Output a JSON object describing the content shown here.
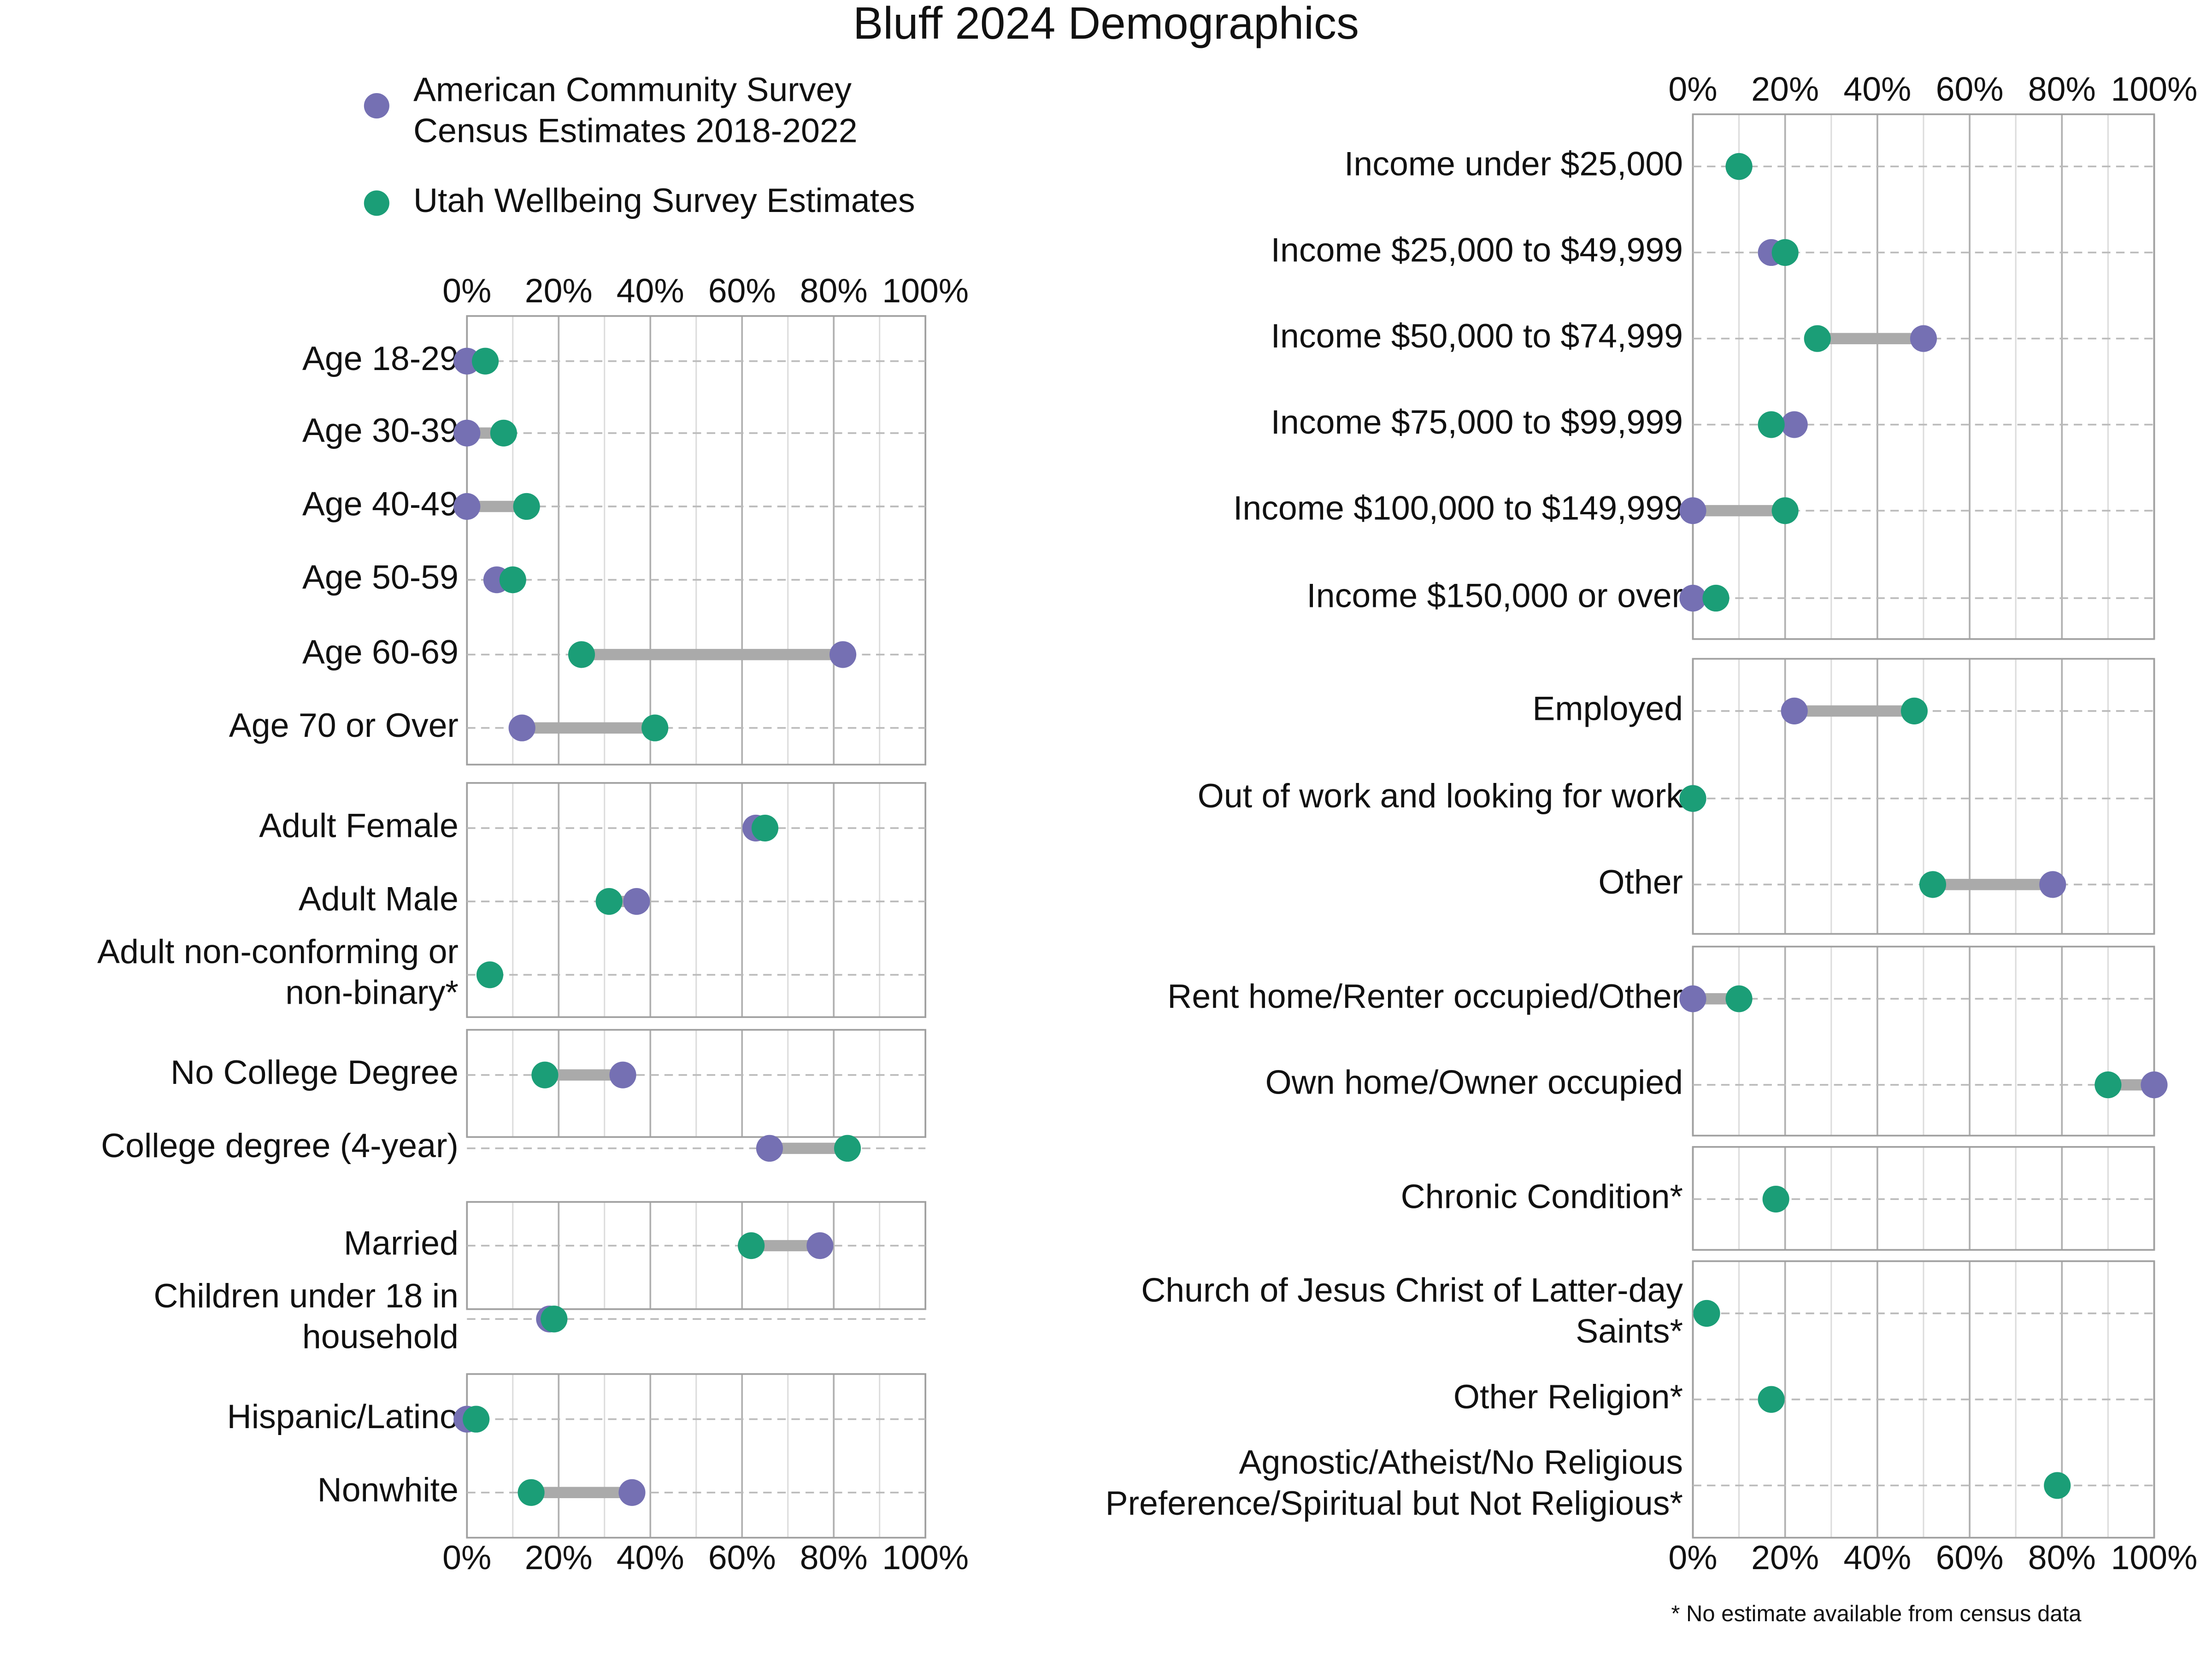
{
  "chart_data": {
    "type": "dumbbell",
    "title": "Bluff 2024 Demographics",
    "series": [
      {
        "name": "American Community Survey\nCensus Estimates 2018-2022",
        "color": "#7570b3"
      },
      {
        "name": "Utah Wellbeing Survey Estimates",
        "color": "#1b9e77"
      }
    ],
    "xlim": [
      0,
      100
    ],
    "xticks": [
      {
        "value": 0,
        "label": "0%"
      },
      {
        "value": 20,
        "label": "20%"
      },
      {
        "value": 40,
        "label": "40%"
      },
      {
        "value": 60,
        "label": "60%"
      },
      {
        "value": 80,
        "label": "80%"
      },
      {
        "value": 100,
        "label": "100%"
      }
    ],
    "minor_xticks": [
      10,
      30,
      50,
      70,
      90
    ],
    "footnote": "* No estimate available from census data",
    "panels": [
      {
        "categories": [
          "Age 18-29",
          "Age 30-39",
          "Age 40-49",
          "Age 50-59",
          "Age 60-69",
          "Age 70 or Over"
        ],
        "series": [
          {
            "values": [
              0,
              0,
              0,
              6.5,
              82,
              12
            ]
          },
          {
            "values": [
              4,
              8,
              13,
              10,
              25,
              41
            ]
          }
        ]
      },
      {
        "categories": [
          "Adult Female",
          "Adult Male",
          "Adult non-conforming or\nnon-binary*"
        ],
        "series": [
          {
            "values": [
              63,
              37,
              null
            ]
          },
          {
            "values": [
              65,
              31,
              5
            ]
          }
        ]
      },
      {
        "categories": [
          "No College Degree",
          "College degree (4-year)"
        ],
        "series": [
          {
            "values": [
              34,
              66
            ]
          },
          {
            "values": [
              17,
              83
            ]
          }
        ]
      },
      {
        "categories": [
          "Married",
          "Children under 18 in\nhousehold"
        ],
        "series": [
          {
            "values": [
              77,
              18
            ]
          },
          {
            "values": [
              62,
              19
            ]
          }
        ]
      },
      {
        "categories": [
          "Hispanic/Latino",
          "Nonwhite"
        ],
        "series": [
          {
            "values": [
              0,
              36
            ]
          },
          {
            "values": [
              2,
              14
            ]
          }
        ]
      },
      {
        "categories": [
          "Income under $25,000",
          "Income $25,000 to $49,999",
          "Income $50,000 to $74,999",
          "Income $75,000 to $99,999",
          "Income $100,000 to $149,999",
          "Income $150,000 or over"
        ],
        "series": [
          {
            "values": [
              10,
              17,
              50,
              22,
              0,
              0
            ]
          },
          {
            "values": [
              10,
              20,
              27,
              17,
              20,
              5
            ]
          }
        ]
      },
      {
        "categories": [
          "Employed",
          "Out of work and looking for work",
          "Other"
        ],
        "series": [
          {
            "values": [
              22,
              0,
              78
            ]
          },
          {
            "values": [
              48,
              0,
              52
            ]
          }
        ]
      },
      {
        "categories": [
          "Rent home/Renter occupied/Other",
          "Own home/Owner occupied"
        ],
        "series": [
          {
            "values": [
              0,
              100
            ]
          },
          {
            "values": [
              10,
              90
            ]
          }
        ]
      },
      {
        "categories": [
          "Chronic Condition*"
        ],
        "series": [
          {
            "values": [
              null
            ]
          },
          {
            "values": [
              18
            ]
          }
        ]
      },
      {
        "categories": [
          "Church of Jesus Christ of Latter-day\nSaints*",
          "Other Religion*",
          "Agnostic/Atheist/No Religious\nPreference/Spiritual but Not Religious*"
        ],
        "series": [
          {
            "values": [
              null,
              null,
              null
            ]
          },
          {
            "values": [
              3,
              17,
              79
            ]
          }
        ]
      }
    ]
  }
}
